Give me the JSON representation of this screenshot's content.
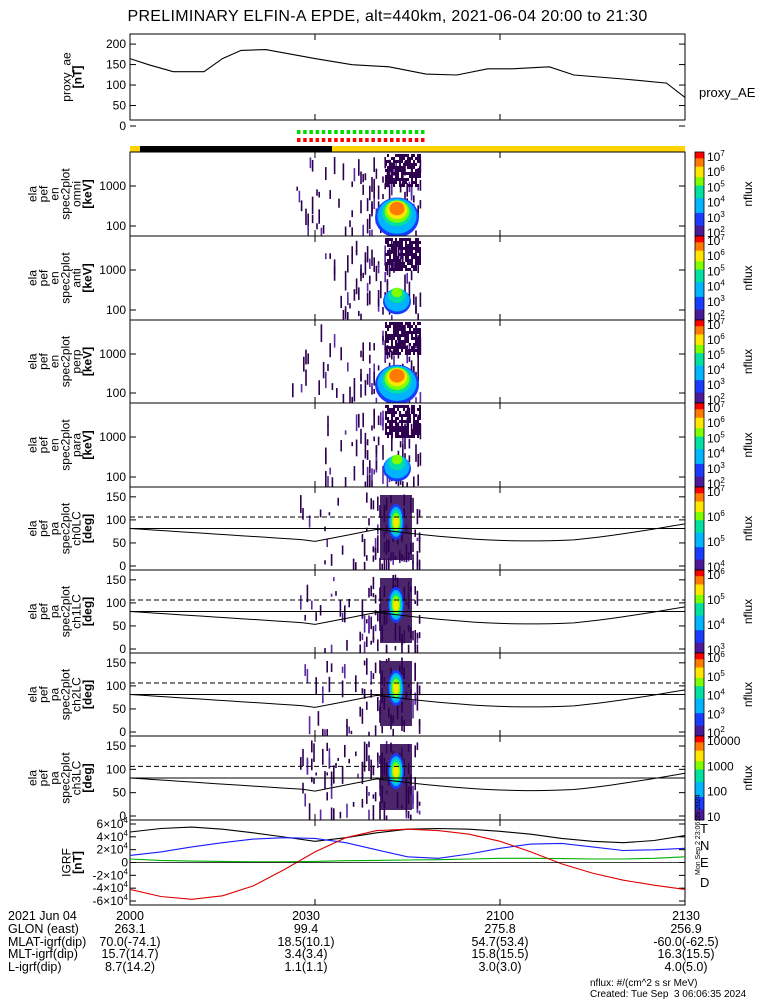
{
  "title": "PRELIMINARY ELFIN-A EPDE, alt=440km, 2021-06-04 20:00 to 21:30",
  "panels": [
    {
      "id": "proxy_ae",
      "ylabel": [
        "proxy_ae",
        "[nT]"
      ],
      "yticks": [
        "0",
        "50",
        "100",
        "150",
        "200"
      ],
      "right_label": "proxy_AE"
    },
    {
      "id": "omni",
      "ylabel": [
        "ela",
        "pef",
        "en",
        "spec2plot",
        "omni",
        "[keV]"
      ],
      "yticks": [
        "100",
        "1000"
      ],
      "cbar_ticks": [
        "10^2",
        "10^3",
        "10^4",
        "10^5",
        "10^6",
        "10^7"
      ],
      "cbar_label": "nflux"
    },
    {
      "id": "anti",
      "ylabel": [
        "ela",
        "pef",
        "en",
        "spec2plot",
        "anti",
        "[keV]"
      ],
      "yticks": [
        "100",
        "1000"
      ],
      "cbar_ticks": [
        "10^2",
        "10^3",
        "10^4",
        "10^5",
        "10^6",
        "10^7"
      ],
      "cbar_label": "nflux"
    },
    {
      "id": "perp",
      "ylabel": [
        "ela",
        "pef",
        "en",
        "spec2plot",
        "perp",
        "[keV]"
      ],
      "yticks": [
        "100",
        "1000"
      ],
      "cbar_ticks": [
        "10^2",
        "10^3",
        "10^4",
        "10^5",
        "10^6",
        "10^7"
      ],
      "cbar_label": "nflux"
    },
    {
      "id": "para",
      "ylabel": [
        "ela",
        "pef",
        "en",
        "spec2plot",
        "para",
        "[keV]"
      ],
      "yticks": [
        "100",
        "1000"
      ],
      "cbar_ticks": [
        "10^2",
        "10^3",
        "10^4",
        "10^5",
        "10^6",
        "10^7"
      ],
      "cbar_label": "nflux"
    },
    {
      "id": "ch0LC",
      "ylabel": [
        "ela",
        "pef",
        "pa",
        "spec2plot",
        "ch0LC",
        "[deg]"
      ],
      "yticks": [
        "0",
        "50",
        "100",
        "150"
      ],
      "cbar_ticks": [
        "10^4",
        "10^5",
        "10^6",
        "10^7"
      ],
      "cbar_label": "nflux"
    },
    {
      "id": "ch1LC",
      "ylabel": [
        "ela",
        "pef",
        "pa",
        "spec2plot",
        "ch1LC",
        "[deg]"
      ],
      "yticks": [
        "0",
        "50",
        "100",
        "150"
      ],
      "cbar_ticks": [
        "10^3",
        "10^4",
        "10^5",
        "10^6"
      ],
      "cbar_label": "nflux"
    },
    {
      "id": "ch2LC",
      "ylabel": [
        "ela",
        "pef",
        "pa",
        "spec2plot",
        "ch2LC",
        "[deg]"
      ],
      "yticks": [
        "0",
        "50",
        "100",
        "150"
      ],
      "cbar_ticks": [
        "10^2",
        "10^3",
        "10^4",
        "10^5",
        "10^6"
      ],
      "cbar_label": "nflux"
    },
    {
      "id": "ch3LC",
      "ylabel": [
        "ela",
        "pef",
        "pa",
        "spec2plot",
        "ch3LC",
        "[deg]"
      ],
      "yticks": [
        "0",
        "50",
        "100",
        "150"
      ],
      "cbar_ticks": [
        "10",
        "100",
        "1000",
        "10000"
      ],
      "cbar_label": "nflux"
    },
    {
      "id": "igrf",
      "ylabel": [
        "IGRF",
        "[nT]"
      ],
      "yticks": [
        "-6x10^4",
        "-4x10^4",
        "-2x10^4",
        "0",
        "2x10^4",
        "4x10^4",
        "6x10^4"
      ],
      "legend": [
        "T",
        "N",
        "E",
        "D"
      ]
    }
  ],
  "colors": {
    "T": "#000000",
    "N": "#1a1aff",
    "E": "#00b000",
    "D": "#dd0000",
    "status_yellow": "#ffd400",
    "status_black": "#000000",
    "marker_green": "#00dd00",
    "marker_red": "#ff0000"
  },
  "chart_data": [
    {
      "type": "line",
      "panel": "proxy_ae",
      "ylabel": "proxy_ae [nT]",
      "ylim": [
        0,
        210
      ],
      "x_minutes": [
        0,
        3,
        7,
        12,
        15,
        18,
        22,
        30,
        36,
        42,
        48,
        53,
        58,
        62,
        68,
        72,
        80,
        87,
        90
      ],
      "values": [
        150,
        135,
        118,
        118,
        150,
        170,
        172,
        150,
        135,
        130,
        112,
        110,
        125,
        125,
        130,
        110,
        100,
        90,
        55
      ],
      "series_label": "proxy_AE"
    },
    {
      "type": "line",
      "panel": "igrf",
      "ylabel": "IGRF [nT]",
      "ylim": [
        -60000,
        60000
      ],
      "legend": [
        "T",
        "N",
        "E",
        "D"
      ],
      "x_minutes": [
        0,
        5,
        10,
        15,
        20,
        25,
        30,
        35,
        40,
        45,
        50,
        55,
        60,
        65,
        70,
        75,
        80,
        85,
        90
      ],
      "series": [
        {
          "name": "T",
          "values": [
            43000,
            48000,
            50000,
            47000,
            42000,
            36000,
            30000,
            35000,
            42000,
            47000,
            48000,
            47000,
            44000,
            40000,
            34000,
            30000,
            28000,
            31000,
            38000
          ]
        },
        {
          "name": "N",
          "values": [
            10000,
            15000,
            22000,
            28000,
            33000,
            35000,
            34000,
            28000,
            18000,
            8000,
            6000,
            12000,
            20000,
            26000,
            27000,
            22000,
            17000,
            18000,
            20000
          ]
        },
        {
          "name": "E",
          "values": [
            5000,
            3000,
            2000,
            1500,
            1000,
            1000,
            1500,
            2500,
            3000,
            3500,
            4000,
            5000,
            6000,
            6000,
            5500,
            5000,
            5000,
            6000,
            8000
          ]
        },
        {
          "name": "D",
          "values": [
            -38000,
            -48000,
            -52000,
            -47000,
            -33000,
            -10000,
            15000,
            35000,
            45000,
            47000,
            45000,
            40000,
            30000,
            15000,
            -2000,
            -15000,
            -25000,
            -32000,
            -38000
          ]
        }
      ]
    }
  ],
  "footer": {
    "rows": [
      {
        "label": "2021 Jun 04",
        "values": [
          "2000",
          "2030",
          "2100",
          "2130"
        ]
      },
      {
        "label": "GLON (east)",
        "values": [
          "263.1",
          "99.4",
          "275.8",
          "256.9"
        ]
      },
      {
        "label": "MLAT-igrf(dip)",
        "values": [
          "70.0(-74.1)",
          "18.5(10.1)",
          "54.7(53.4)",
          "-60.0(-62.5)"
        ]
      },
      {
        "label": "MLT-igrf(dip)",
        "values": [
          "15.7(14.7)",
          "3.4(3.4)",
          "15.8(15.5)",
          "16.3(15.5)"
        ]
      },
      {
        "label": "L-igrf(dip)",
        "values": [
          "8.7(14.2)",
          "1.1(1.1)",
          "3.0(3.0)",
          "4.0(5.0)"
        ]
      }
    ],
    "units_note": "nflux: #/(cm^2 s sr MeV)",
    "created": "Created: Tue Sep  3 06:06:35 2024",
    "side_stamp": "Mon Sep  2 23:06:35 2024"
  }
}
